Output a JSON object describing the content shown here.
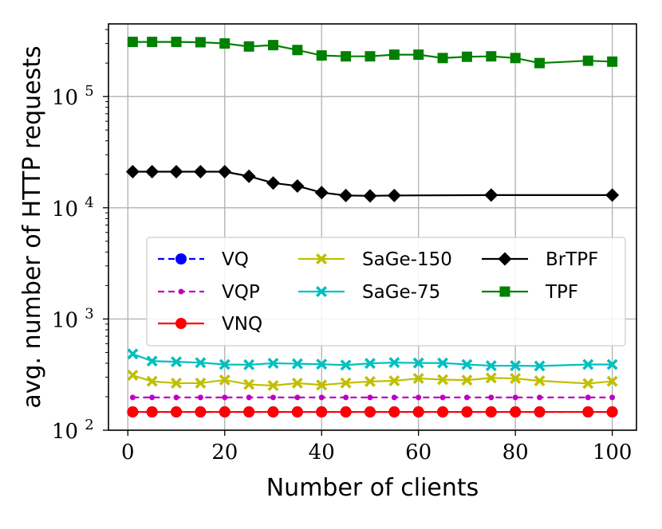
{
  "chart_data": {
    "type": "line",
    "xlabel": "Number of clients",
    "ylabel": "avg. number of HTTP requests",
    "xlim": [
      -4,
      105
    ],
    "ylim": [
      100,
      450000
    ],
    "yscale": "log",
    "grid": true,
    "x_ticks": [
      0,
      20,
      40,
      60,
      80,
      100
    ],
    "x_tick_labels": [
      "0",
      "20",
      "40",
      "60",
      "80",
      "100"
    ],
    "y_ticks": [
      100,
      1000,
      10000,
      100000
    ],
    "y_tick_bases": [
      "10",
      "10",
      "10",
      "10"
    ],
    "y_tick_exponents": [
      "2",
      "3",
      "4",
      "5"
    ],
    "legend_position": "center-right",
    "series": [
      {
        "name": "VQ",
        "color": "#0000ff",
        "dash": true,
        "marker": "circle",
        "x": [
          1,
          5,
          10,
          15,
          20,
          25,
          30,
          35,
          40,
          45,
          50,
          55,
          60,
          65,
          70,
          75,
          80,
          85,
          95,
          100
        ],
        "values": [
          146,
          146,
          146,
          146,
          146,
          146,
          146,
          146,
          146,
          146,
          146,
          146,
          146,
          146,
          146,
          146,
          146,
          146,
          146,
          146
        ]
      },
      {
        "name": "VQP",
        "color": "#bf00bf",
        "dash": true,
        "marker": "small-circle",
        "x": [
          1,
          5,
          10,
          15,
          20,
          25,
          30,
          35,
          40,
          45,
          50,
          55,
          60,
          65,
          70,
          75,
          80,
          85,
          95,
          100
        ],
        "values": [
          197,
          197,
          197,
          197,
          197,
          197,
          197,
          197,
          197,
          197,
          197,
          197,
          197,
          197,
          197,
          197,
          197,
          197,
          197,
          197
        ]
      },
      {
        "name": "VNQ",
        "color": "#ff0000",
        "dash": false,
        "marker": "circle",
        "x": [
          1,
          5,
          10,
          15,
          20,
          25,
          30,
          35,
          40,
          45,
          50,
          55,
          60,
          65,
          70,
          75,
          80,
          85,
          95,
          100
        ],
        "values": [
          146,
          146,
          146,
          146,
          146,
          146,
          146,
          146,
          146,
          146,
          146,
          146,
          146,
          146,
          146,
          146,
          146,
          146,
          146,
          146
        ]
      },
      {
        "name": "SaGe-150",
        "color": "#bfbf00",
        "dash": false,
        "marker": "x-filled",
        "x": [
          1,
          5,
          10,
          15,
          20,
          25,
          30,
          35,
          40,
          45,
          50,
          55,
          60,
          65,
          70,
          75,
          80,
          85,
          95,
          100
        ],
        "values": [
          312,
          275,
          265,
          265,
          283,
          258,
          252,
          265,
          255,
          266,
          274,
          278,
          292,
          285,
          282,
          295,
          292,
          278,
          263,
          275
        ]
      },
      {
        "name": "SaGe-75",
        "color": "#00bfbf",
        "dash": false,
        "marker": "x-filled",
        "x": [
          1,
          5,
          10,
          15,
          20,
          25,
          30,
          35,
          40,
          45,
          50,
          55,
          60,
          65,
          70,
          75,
          80,
          85,
          95,
          100
        ],
        "values": [
          485,
          418,
          412,
          405,
          390,
          388,
          400,
          396,
          392,
          385,
          399,
          406,
          402,
          402,
          390,
          380,
          380,
          378,
          390,
          390
        ]
      },
      {
        "name": "BrTPF",
        "color": "#000000",
        "dash": false,
        "marker": "diamond",
        "x": [
          1,
          5,
          10,
          15,
          20,
          25,
          30,
          35,
          40,
          45,
          50,
          55,
          75,
          100
        ],
        "values": [
          21100,
          21100,
          21100,
          21100,
          21100,
          19200,
          16700,
          15700,
          13700,
          12900,
          12800,
          12900,
          13000,
          13000
        ]
      },
      {
        "name": "TPF",
        "color": "#008000",
        "dash": false,
        "marker": "square",
        "x": [
          1,
          5,
          10,
          15,
          20,
          25,
          30,
          35,
          40,
          45,
          50,
          55,
          60,
          65,
          70,
          75,
          80,
          85,
          95,
          100
        ],
        "values": [
          310000,
          310000,
          310000,
          308000,
          300000,
          282000,
          290000,
          262000,
          234000,
          230000,
          230000,
          238000,
          238000,
          222000,
          228000,
          230000,
          222000,
          200000,
          210000,
          206000
        ]
      }
    ]
  }
}
